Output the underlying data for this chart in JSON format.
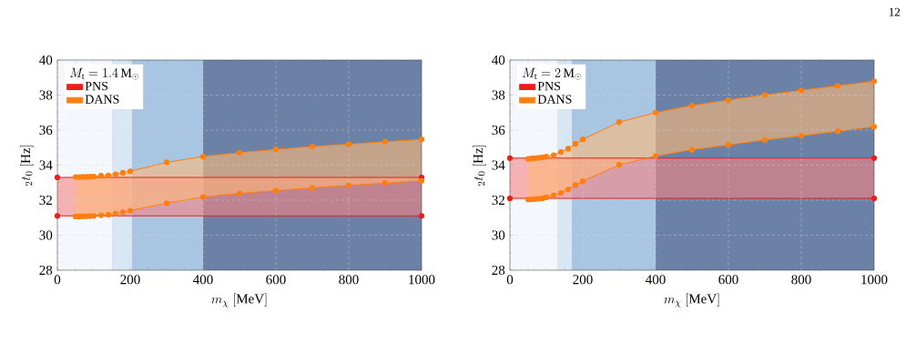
{
  "chart_data": [
    {
      "type": "line",
      "xlabel": "m_\\chi\\ [\\mathrm{MeV}]",
      "ylabel": "{}_{2}t_{0}\\ [\\mathrm{Hz}]",
      "legend_title": "M_\\mathrm{t} = 1.4\\,\\mathrm{M}_\\odot",
      "series": [
        {
          "name": "PNS",
          "color": "#ee1c1c",
          "x": [
            0,
            1000
          ],
          "values": [
            33.3,
            33.3
          ],
          "lower": [
            31.1,
            31.1
          ],
          "upper": [
            33.3,
            33.3
          ]
        },
        {
          "color": "#ee1c1c",
          "x": [
            0,
            1000
          ],
          "values": [
            31.1,
            31.1
          ]
        },
        {
          "name": "DANS",
          "color": "#ff7f0e",
          "x": [
            50,
            60,
            70,
            80,
            90,
            100,
            120,
            140,
            160,
            180,
            200,
            300,
            400,
            500,
            600,
            700,
            800,
            900,
            1000
          ],
          "values": [
            33.32,
            33.32,
            33.33,
            33.33,
            33.34,
            33.35,
            33.4,
            33.41,
            33.48,
            33.57,
            33.65,
            34.16,
            34.49,
            34.71,
            34.9,
            35.06,
            35.2,
            35.34,
            35.47
          ],
          "lower": [
            31.07,
            31.07,
            31.08,
            31.08,
            31.09,
            31.1,
            31.14,
            31.17,
            31.23,
            31.31,
            31.4,
            31.83,
            32.18,
            32.39,
            32.54,
            32.7,
            32.84,
            32.98,
            33.1
          ],
          "upper": [
            33.32,
            33.32,
            33.33,
            33.33,
            33.34,
            33.35,
            33.4,
            33.41,
            33.48,
            33.57,
            33.65,
            34.16,
            34.49,
            34.71,
            34.9,
            35.06,
            35.2,
            35.34,
            35.47
          ]
        },
        {
          "color": "#ff7f0e",
          "x": [
            50,
            60,
            70,
            80,
            90,
            100,
            120,
            140,
            160,
            180,
            200,
            300,
            400,
            500,
            600,
            700,
            800,
            900,
            1000
          ],
          "values": [
            31.07,
            31.07,
            31.08,
            31.08,
            31.09,
            31.1,
            31.14,
            31.17,
            31.23,
            31.31,
            31.4,
            31.83,
            32.18,
            32.39,
            32.54,
            32.7,
            32.84,
            32.98,
            33.1
          ]
        }
      ],
      "bands": [
        {
          "axis": "x",
          "from": 0,
          "to": 150,
          "color": "#f4f7fb"
        },
        {
          "axis": "x",
          "from": 150,
          "to": 205,
          "color": "#d8e7f3"
        },
        {
          "axis": "x",
          "from": 205,
          "to": 400,
          "color": "#a8c5e1"
        },
        {
          "axis": "x",
          "from": 400,
          "to": 1000,
          "color": "#6b82a6"
        }
      ],
      "xlim": [
        0,
        1000
      ],
      "ylim": [
        28,
        40
      ],
      "xticks": [
        0,
        200,
        400,
        600,
        800,
        1000
      ],
      "yticks": [
        28,
        30,
        32,
        34,
        36,
        38,
        40
      ],
      "grid": true,
      "legend": "top left",
      "marker": "circle",
      "line_style": "solid"
    },
    {
      "type": "line",
      "xlabel": "m_\\chi\\ [\\mathrm{MeV}]",
      "ylabel": "{}_{2}t_{0}\\ [\\mathrm{Hz}]",
      "legend_title": "M_\\mathrm{t} = 2\\,\\mathrm{M}_\\odot",
      "series": [
        {
          "name": "PNS",
          "color": "#ee1c1c",
          "x": [
            0,
            1000
          ],
          "values": [
            34.4,
            34.4
          ],
          "lower": [
            32.1,
            32.1
          ],
          "upper": [
            34.4,
            34.4
          ]
        },
        {
          "color": "#ee1c1c",
          "x": [
            0,
            1000
          ],
          "values": [
            32.1,
            32.1
          ]
        },
        {
          "name": "DANS",
          "color": "#ff7f0e",
          "x": [
            50,
            60,
            70,
            80,
            90,
            100,
            120,
            140,
            160,
            180,
            200,
            300,
            400,
            500,
            600,
            700,
            800,
            900,
            1000
          ],
          "values": [
            34.36,
            34.38,
            34.4,
            34.42,
            34.45,
            34.49,
            34.57,
            34.75,
            34.94,
            35.21,
            35.47,
            36.46,
            37.0,
            37.4,
            37.71,
            38.01,
            38.27,
            38.53,
            38.79
          ],
          "lower": [
            32.04,
            32.05,
            32.06,
            32.08,
            32.1,
            32.16,
            32.27,
            32.41,
            32.61,
            32.86,
            33.08,
            34.02,
            34.52,
            34.88,
            35.16,
            35.44,
            35.68,
            35.94,
            36.19
          ],
          "upper": [
            34.36,
            34.38,
            34.4,
            34.42,
            34.45,
            34.49,
            34.57,
            34.75,
            34.94,
            35.21,
            35.47,
            36.46,
            37.0,
            37.4,
            37.71,
            38.01,
            38.27,
            38.53,
            38.79
          ]
        },
        {
          "color": "#ff7f0e",
          "x": [
            50,
            60,
            70,
            80,
            90,
            100,
            120,
            140,
            160,
            180,
            200,
            300,
            400,
            500,
            600,
            700,
            800,
            900,
            1000
          ],
          "values": [
            32.04,
            32.05,
            32.06,
            32.08,
            32.1,
            32.16,
            32.27,
            32.41,
            32.61,
            32.86,
            33.08,
            34.02,
            34.52,
            34.88,
            35.16,
            35.44,
            35.68,
            35.94,
            36.19
          ]
        }
      ],
      "bands": [
        {
          "axis": "x",
          "from": 0,
          "to": 130,
          "color": "#f4f7fb"
        },
        {
          "axis": "x",
          "from": 130,
          "to": 170,
          "color": "#d8e7f3"
        },
        {
          "axis": "x",
          "from": 170,
          "to": 400,
          "color": "#a8c5e1"
        },
        {
          "axis": "x",
          "from": 400,
          "to": 1000,
          "color": "#6b82a6"
        }
      ],
      "xlim": [
        0,
        1000
      ],
      "ylim": [
        28,
        40
      ],
      "xticks": [
        0,
        200,
        400,
        600,
        800,
        1000
      ],
      "yticks": [
        28,
        30,
        32,
        34,
        36,
        38,
        40
      ],
      "grid": true,
      "legend": "top left",
      "marker": "circle",
      "line_style": "solid",
      "annotations": [
        "12"
      ]
    }
  ]
}
